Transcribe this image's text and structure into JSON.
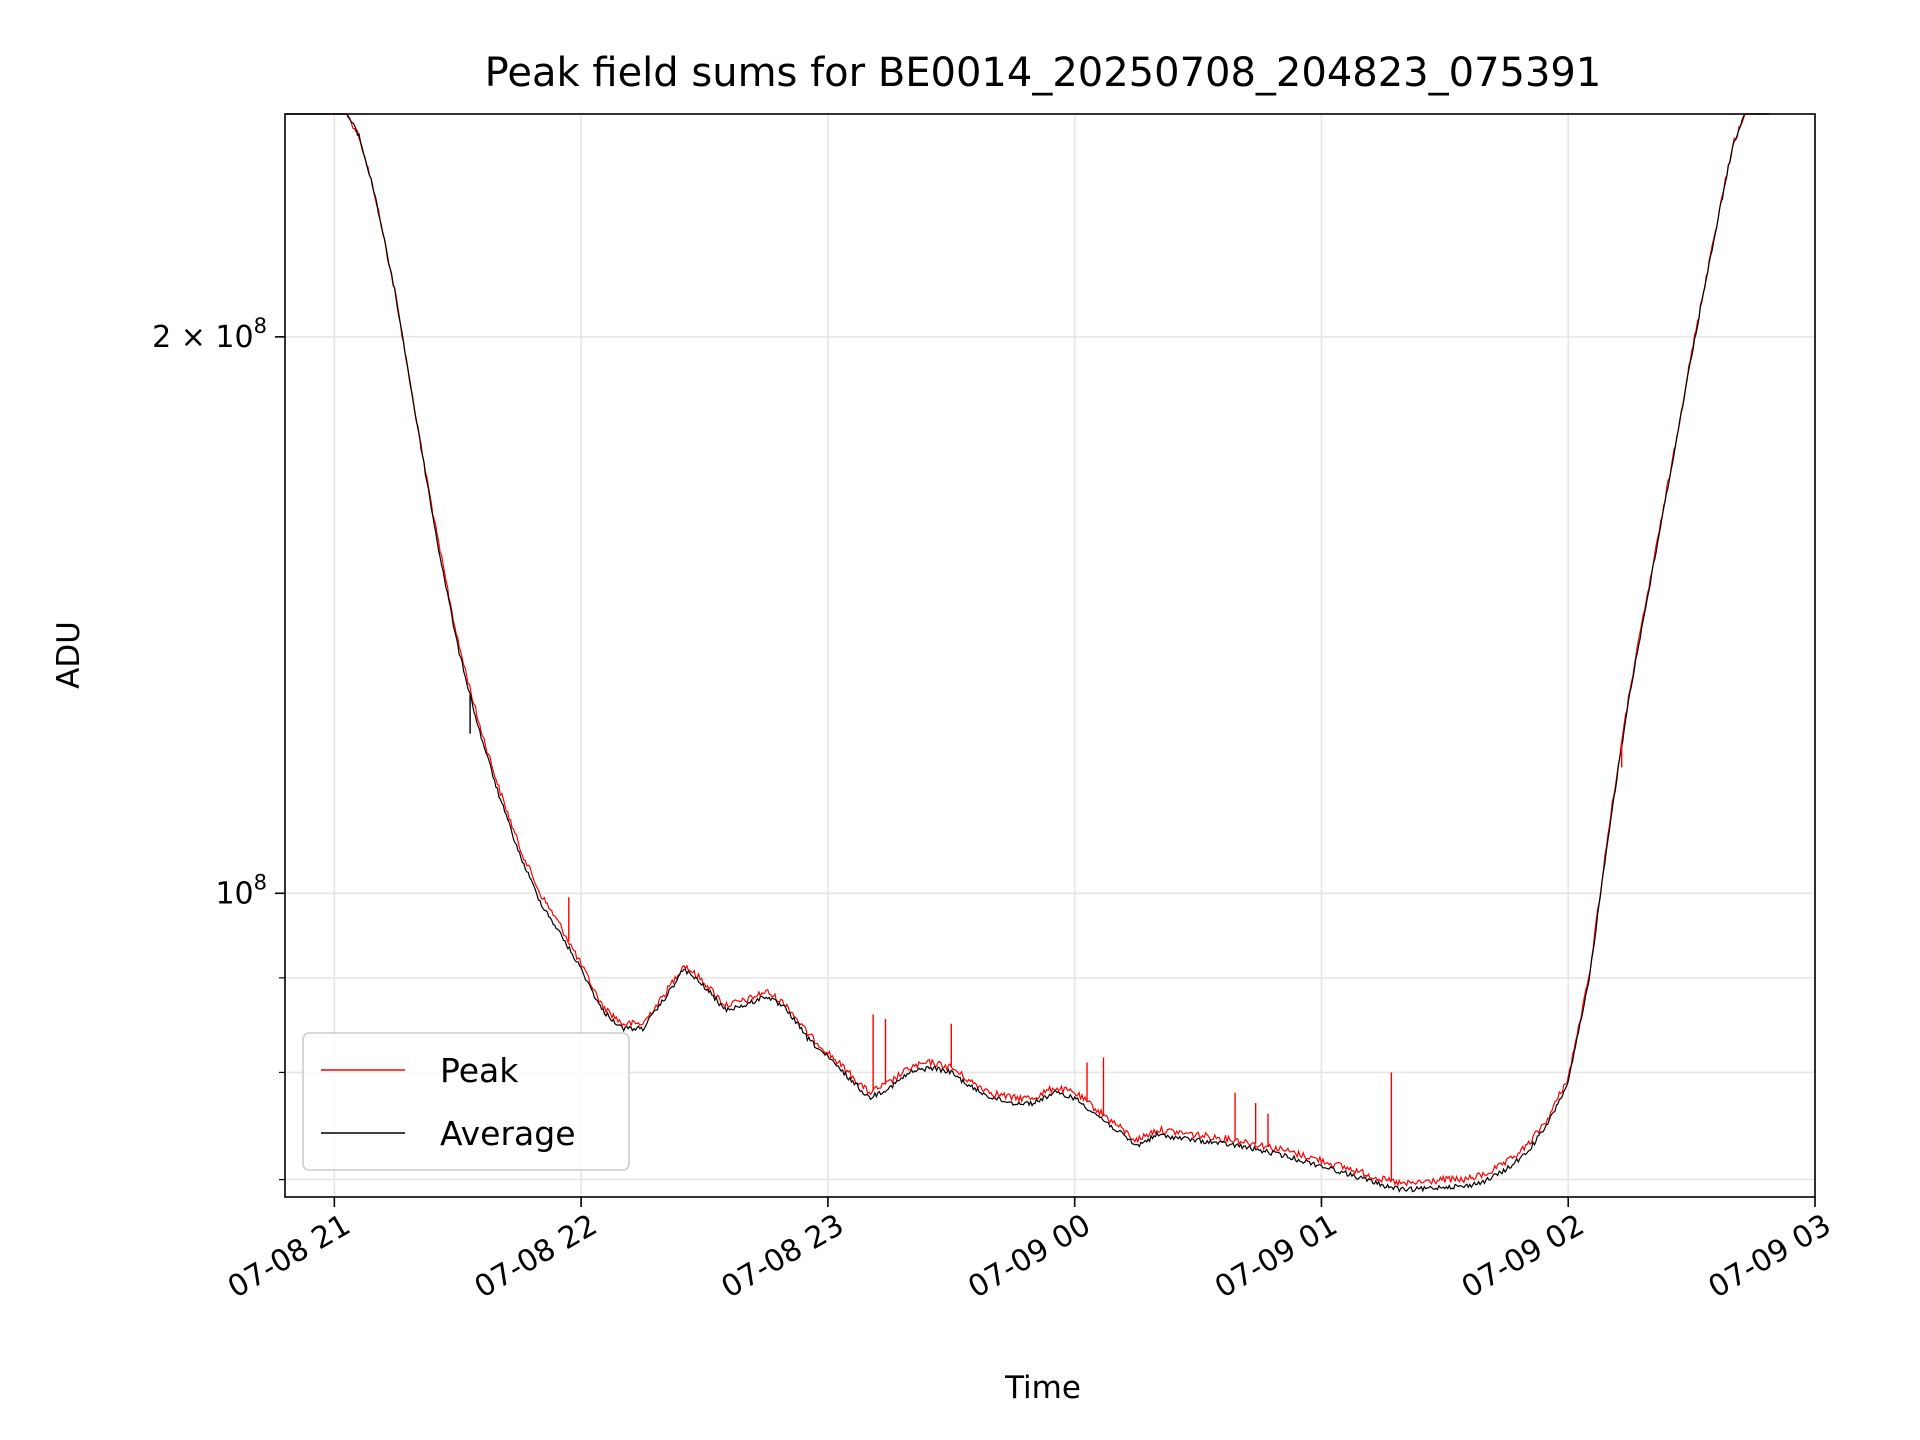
{
  "chart_data": {
    "type": "line",
    "title": "Peak field sums for BE0014_20250708_204823_075391",
    "xlabel": "Time",
    "ylabel": "ADU",
    "y_scale": "log",
    "grid": true,
    "legend_position": "lower-left",
    "xlim": [
      "2025-07-08 20:48",
      "2025-07-09 03:00"
    ],
    "ylim": [
      68500000,
      264000000
    ],
    "x_ticks": [
      {
        "label": "07-08 21",
        "value": "2025-07-08 21:00"
      },
      {
        "label": "07-08 22",
        "value": "2025-07-08 22:00"
      },
      {
        "label": "07-08 23",
        "value": "2025-07-08 23:00"
      },
      {
        "label": "07-09 00",
        "value": "2025-07-09 00:00"
      },
      {
        "label": "07-09 01",
        "value": "2025-07-09 01:00"
      },
      {
        "label": "07-09 02",
        "value": "2025-07-09 02:00"
      },
      {
        "label": "07-09 03",
        "value": "2025-07-09 03:00"
      }
    ],
    "y_ticks": [
      {
        "value": 200000000,
        "base": "2 × 10",
        "exp": "8"
      },
      {
        "value": 100000000,
        "base": "10",
        "exp": "8"
      }
    ],
    "y_minor_ticks": [
      90000000,
      80000000,
      70000000
    ],
    "series": [
      {
        "name": "Peak",
        "color": "#ff0000",
        "x": [
          "2025-07-08 20:48",
          "2025-07-08 21:03",
          "2025-07-08 21:06",
          "2025-07-08 21:10",
          "2025-07-08 21:15",
          "2025-07-08 21:20",
          "2025-07-08 21:25",
          "2025-07-08 21:30",
          "2025-07-08 21:35",
          "2025-07-08 21:40",
          "2025-07-08 21:45",
          "2025-07-08 21:50",
          "2025-07-08 21:55",
          "2025-07-08 22:00",
          "2025-07-08 22:05",
          "2025-07-08 22:10",
          "2025-07-08 22:15",
          "2025-07-08 22:20",
          "2025-07-08 22:25",
          "2025-07-08 22:30",
          "2025-07-08 22:35",
          "2025-07-08 22:40",
          "2025-07-08 22:45",
          "2025-07-08 22:50",
          "2025-07-08 22:55",
          "2025-07-08 23:00",
          "2025-07-08 23:05",
          "2025-07-08 23:10",
          "2025-07-08 23:15",
          "2025-07-08 23:20",
          "2025-07-08 23:25",
          "2025-07-08 23:30",
          "2025-07-08 23:35",
          "2025-07-08 23:40",
          "2025-07-08 23:45",
          "2025-07-08 23:50",
          "2025-07-08 23:55",
          "2025-07-09 00:00",
          "2025-07-09 00:05",
          "2025-07-09 00:10",
          "2025-07-09 00:15",
          "2025-07-09 00:20",
          "2025-07-09 00:30",
          "2025-07-09 00:40",
          "2025-07-09 00:50",
          "2025-07-09 01:00",
          "2025-07-09 01:10",
          "2025-07-09 01:15",
          "2025-07-09 01:20",
          "2025-07-09 01:25",
          "2025-07-09 01:30",
          "2025-07-09 01:35",
          "2025-07-09 01:40",
          "2025-07-09 01:45",
          "2025-07-09 01:50",
          "2025-07-09 01:55",
          "2025-07-09 02:00",
          "2025-07-09 02:05",
          "2025-07-09 02:10",
          "2025-07-09 02:15",
          "2025-07-09 02:20",
          "2025-07-09 02:25",
          "2025-07-09 02:30",
          "2025-07-09 02:35",
          "2025-07-09 02:40",
          "2025-07-09 02:43",
          "2025-07-09 02:49"
        ],
        "values": [
          264000000,
          264000000,
          257000000,
          238000000,
          210000000,
          180000000,
          156000000,
          137000000,
          124000000,
          114000000,
          106000000,
          100000000,
          96000000,
          91500000,
          87000000,
          85000000,
          85000000,
          88000000,
          91500000,
          89500000,
          87000000,
          87500000,
          88500000,
          87000000,
          84000000,
          82000000,
          80000000,
          78000000,
          79000000,
          80500000,
          81000000,
          80500000,
          79000000,
          78000000,
          77500000,
          77500000,
          78500000,
          78000000,
          76500000,
          75000000,
          73500000,
          74500000,
          74000000,
          73500000,
          72700000,
          71700000,
          70600000,
          70000000,
          69600000,
          69800000,
          70000000,
          70000000,
          70500000,
          71500000,
          73000000,
          75500000,
          79500000,
          90000000,
          109000000,
          129000000,
          148000000,
          170000000,
          196000000,
          224000000,
          254000000,
          264000000,
          264000000
        ]
      },
      {
        "name": "Average",
        "color": "#000000",
        "x": [
          "2025-07-08 20:48",
          "2025-07-08 21:03",
          "2025-07-08 21:06",
          "2025-07-08 21:10",
          "2025-07-08 21:15",
          "2025-07-08 21:20",
          "2025-07-08 21:25",
          "2025-07-08 21:30",
          "2025-07-08 21:35",
          "2025-07-08 21:40",
          "2025-07-08 21:45",
          "2025-07-08 21:50",
          "2025-07-08 21:55",
          "2025-07-08 22:00",
          "2025-07-08 22:05",
          "2025-07-08 22:10",
          "2025-07-08 22:15",
          "2025-07-08 22:20",
          "2025-07-08 22:25",
          "2025-07-08 22:30",
          "2025-07-08 22:35",
          "2025-07-08 22:40",
          "2025-07-08 22:45",
          "2025-07-08 22:50",
          "2025-07-08 22:55",
          "2025-07-08 23:00",
          "2025-07-08 23:05",
          "2025-07-08 23:10",
          "2025-07-08 23:15",
          "2025-07-08 23:20",
          "2025-07-08 23:25",
          "2025-07-08 23:30",
          "2025-07-08 23:35",
          "2025-07-08 23:40",
          "2025-07-08 23:45",
          "2025-07-08 23:50",
          "2025-07-08 23:55",
          "2025-07-09 00:00",
          "2025-07-09 00:05",
          "2025-07-09 00:10",
          "2025-07-09 00:15",
          "2025-07-09 00:20",
          "2025-07-09 00:30",
          "2025-07-09 00:40",
          "2025-07-09 00:50",
          "2025-07-09 01:00",
          "2025-07-09 01:10",
          "2025-07-09 01:15",
          "2025-07-09 01:20",
          "2025-07-09 01:25",
          "2025-07-09 01:30",
          "2025-07-09 01:35",
          "2025-07-09 01:40",
          "2025-07-09 01:45",
          "2025-07-09 01:50",
          "2025-07-09 01:55",
          "2025-07-09 02:00",
          "2025-07-09 02:05",
          "2025-07-09 02:10",
          "2025-07-09 02:15",
          "2025-07-09 02:20",
          "2025-07-09 02:25",
          "2025-07-09 02:30",
          "2025-07-09 02:35",
          "2025-07-09 02:40",
          "2025-07-09 02:43",
          "2025-07-09 02:49"
        ],
        "values": [
          264000000,
          264000000,
          257000000,
          238000000,
          210000000,
          180000000,
          155000000,
          136000000,
          123000000,
          113000000,
          105000000,
          99000000,
          95000000,
          91000000,
          86500000,
          84500000,
          84500000,
          87500000,
          91000000,
          89000000,
          86500000,
          87000000,
          88000000,
          86500000,
          83500000,
          81500000,
          79500000,
          77500000,
          78500000,
          80000000,
          80500000,
          80000000,
          78500000,
          77500000,
          77000000,
          77000000,
          78000000,
          77500000,
          76000000,
          74500000,
          73000000,
          74000000,
          73500000,
          73000000,
          72200000,
          71200000,
          70100000,
          69500000,
          69100000,
          69200000,
          69400000,
          69400000,
          69900000,
          70900000,
          72400000,
          75000000,
          79000000,
          89500000,
          108500000,
          128500000,
          147500000,
          169500000,
          195500000,
          223500000,
          253500000,
          264000000,
          264000000
        ]
      }
    ],
    "spikes": [
      {
        "x": "2025-07-08 21:33",
        "y": 122000000,
        "series": "Average"
      },
      {
        "x": "2025-07-08 21:57",
        "y": 99500000,
        "series": "Peak"
      },
      {
        "x": "2025-07-08 23:11",
        "y": 86000000,
        "series": "Peak"
      },
      {
        "x": "2025-07-08 23:14",
        "y": 85500000,
        "series": "Peak"
      },
      {
        "x": "2025-07-08 23:30",
        "y": 85000000,
        "series": "Peak"
      },
      {
        "x": "2025-07-09 00:03",
        "y": 81000000,
        "series": "Peak"
      },
      {
        "x": "2025-07-09 00:07",
        "y": 81500000,
        "series": "Peak"
      },
      {
        "x": "2025-07-09 00:39",
        "y": 78000000,
        "series": "Peak"
      },
      {
        "x": "2025-07-09 00:44",
        "y": 77000000,
        "series": "Peak"
      },
      {
        "x": "2025-07-09 00:47",
        "y": 76000000,
        "series": "Peak"
      },
      {
        "x": "2025-07-09 01:17",
        "y": 80000000,
        "series": "Peak"
      },
      {
        "x": "2025-07-09 02:13",
        "y": 117000000,
        "series": "Peak"
      }
    ]
  }
}
